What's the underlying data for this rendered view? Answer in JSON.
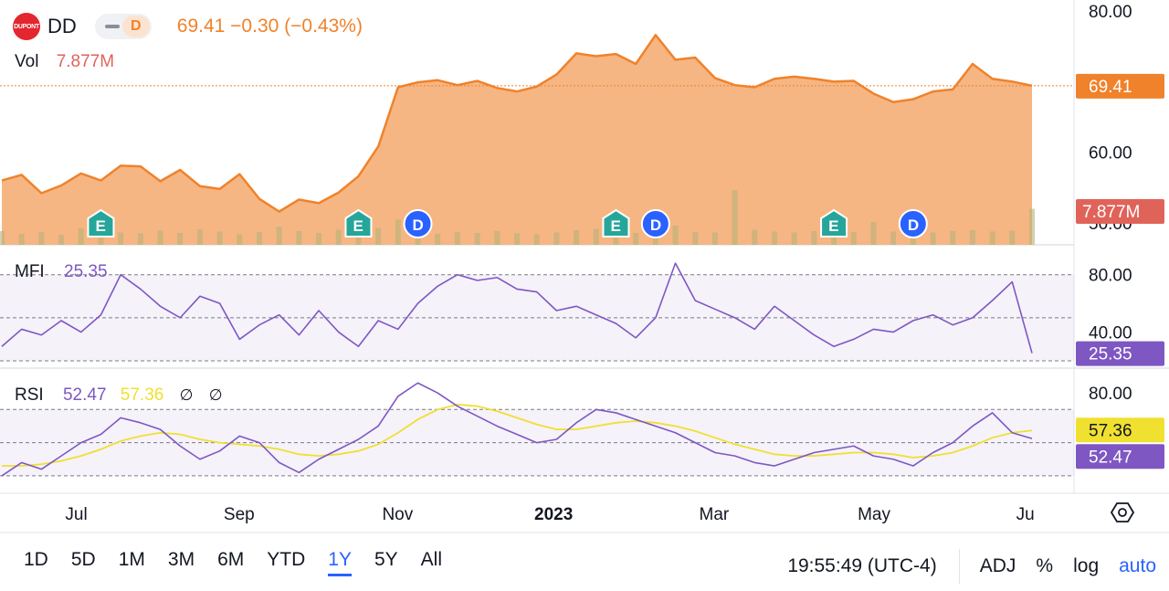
{
  "header": {
    "symbol": "DD",
    "logo_text": "DUPONT",
    "badge": "D",
    "price": "69.41",
    "change": "−0.30",
    "change_pct": "(−0.43%)",
    "price_line": "69.41  −0.30  (−0.43%)"
  },
  "volume_legend": {
    "label": "Vol",
    "value": "7.877M"
  },
  "mfi_legend": {
    "label": "MFI",
    "value": "25.35"
  },
  "rsi_legend": {
    "label": "RSI",
    "value": "52.47",
    "ma_value": "57.36",
    "na1": "∅",
    "na2": "∅"
  },
  "colors": {
    "price": "#f0822b",
    "area": "#f4b27c",
    "volume": "#e0635a",
    "mfi": "#7e57c2",
    "rsi": "#7e57c2",
    "rsi_ma": "#f0e030",
    "accent": "#2962ff"
  },
  "bottom_bar": {
    "ranges": [
      "1D",
      "5D",
      "1M",
      "3M",
      "6M",
      "YTD",
      "1Y",
      "5Y",
      "All"
    ],
    "active_range": "1Y",
    "time": "19:55:49 (UTC-4)",
    "adj": "ADJ",
    "percent": "%",
    "log": "log",
    "auto": "auto"
  },
  "chart_data": [
    {
      "type": "area",
      "title": "DD",
      "x": [
        "2022-06-22",
        "2022-06-29",
        "2022-07-06",
        "2022-07-13",
        "2022-07-20",
        "2022-07-27",
        "2022-08-03",
        "2022-08-10",
        "2022-08-17",
        "2022-08-24",
        "2022-08-31",
        "2022-09-07",
        "2022-09-14",
        "2022-09-21",
        "2022-09-28",
        "2022-10-05",
        "2022-10-12",
        "2022-10-19",
        "2022-10-26",
        "2022-11-02",
        "2022-11-09",
        "2022-11-16",
        "2022-11-23",
        "2022-11-30",
        "2022-12-07",
        "2022-12-14",
        "2022-12-21",
        "2022-12-28",
        "2023-01-04",
        "2023-01-11",
        "2023-01-18",
        "2023-01-25",
        "2023-02-01",
        "2023-02-08",
        "2023-02-15",
        "2023-02-22",
        "2023-03-01",
        "2023-03-08",
        "2023-03-15",
        "2023-03-22",
        "2023-03-29",
        "2023-04-05",
        "2023-04-12",
        "2023-04-19",
        "2023-04-26",
        "2023-05-03",
        "2023-05-10",
        "2023-05-17",
        "2023-05-24",
        "2023-05-31",
        "2023-06-07",
        "2023-06-14",
        "2023-06-16"
      ],
      "series": [
        {
          "name": "DD",
          "values": [
            56.0,
            56.8,
            54.2,
            55.3,
            57.0,
            56.0,
            58.1,
            58.0,
            55.9,
            57.5,
            55.2,
            54.8,
            56.9,
            53.4,
            51.6,
            53.3,
            52.8,
            54.3,
            56.6,
            60.8,
            69.2,
            69.9,
            70.2,
            69.5,
            70.1,
            69.1,
            68.6,
            69.3,
            71.0,
            74.0,
            73.6,
            73.9,
            72.5,
            76.6,
            73.1,
            73.4,
            70.5,
            69.5,
            69.2,
            70.4,
            70.7,
            70.4,
            70.0,
            70.1,
            68.3,
            67.1,
            67.5,
            68.6,
            68.9,
            72.5,
            70.4,
            70.0,
            69.41
          ]
        }
      ],
      "ylim": [
        50,
        80
      ],
      "yticks": [
        "80.00",
        "60.00",
        "50.00"
      ],
      "last_price_label": "69.41",
      "xticks": [
        "Jul",
        "Sep",
        "Nov",
        "2023",
        "Mar",
        "May",
        "Ju"
      ],
      "events": [
        "E",
        "E",
        "D",
        "E",
        "D",
        "E",
        "D"
      ]
    },
    {
      "type": "bar",
      "title": "Vol",
      "values": [
        3.0,
        2.4,
        2.8,
        2.2,
        3.6,
        3.2,
        2.7,
        2.5,
        3.1,
        2.6,
        3.4,
        2.9,
        2.3,
        2.8,
        4.0,
        3.0,
        2.6,
        3.3,
        2.9,
        3.7,
        5.5,
        3.1,
        2.4,
        2.8,
        2.6,
        3.0,
        2.5,
        2.3,
        2.7,
        3.2,
        3.5,
        2.9,
        2.6,
        3.1,
        4.2,
        2.8,
        2.7,
        12.0,
        3.3,
        2.9,
        2.7,
        3.0,
        2.6,
        2.8,
        5.0,
        2.9,
        3.1,
        2.7,
        3.0,
        3.2,
        2.9,
        3.1,
        7.877
      ],
      "last_value_label": "7.877M"
    },
    {
      "type": "line",
      "title": "MFI",
      "series": [
        {
          "name": "MFI",
          "values": [
            30,
            42,
            38,
            48,
            40,
            52,
            80,
            70,
            58,
            50,
            65,
            60,
            35,
            45,
            52,
            38,
            55,
            40,
            30,
            48,
            42,
            60,
            72,
            80,
            76,
            78,
            70,
            68,
            55,
            58,
            52,
            46,
            36,
            50,
            88,
            62,
            56,
            50,
            42,
            58,
            48,
            38,
            30,
            35,
            42,
            40,
            48,
            52,
            45,
            50,
            62,
            75,
            25.35
          ]
        }
      ],
      "ylim": [
        20,
        90
      ],
      "yticks": [
        "80.00",
        "40.00"
      ],
      "bands": [
        80,
        50,
        20
      ],
      "last_value_label": "25.35"
    },
    {
      "type": "line",
      "title": "RSI",
      "series": [
        {
          "name": "RSI",
          "values": [
            30,
            38,
            34,
            42,
            50,
            55,
            65,
            62,
            58,
            48,
            40,
            45,
            54,
            50,
            38,
            32,
            40,
            46,
            52,
            60,
            78,
            86,
            80,
            72,
            66,
            60,
            55,
            50,
            52,
            62,
            70,
            68,
            64,
            60,
            56,
            50,
            44,
            42,
            38,
            36,
            40,
            44,
            46,
            48,
            42,
            40,
            36,
            44,
            50,
            60,
            68,
            56,
            52.47
          ]
        },
        {
          "name": "RSI-based MA",
          "values": [
            36,
            36,
            37,
            39,
            42,
            46,
            51,
            54,
            56,
            55,
            52,
            50,
            49,
            48,
            46,
            43,
            42,
            43,
            45,
            49,
            56,
            64,
            70,
            73,
            72,
            69,
            65,
            61,
            58,
            58,
            60,
            62,
            63,
            62,
            60,
            57,
            53,
            49,
            46,
            43,
            42,
            42,
            43,
            44,
            44,
            43,
            41,
            42,
            44,
            48,
            53,
            56,
            57.36
          ]
        }
      ],
      "ylim": [
        25,
        90
      ],
      "yticks": [
        "80.00",
        "40.00"
      ],
      "bands": [
        70,
        50,
        30
      ],
      "last_value_label": "52.47",
      "last_ma_label": "57.36"
    }
  ]
}
